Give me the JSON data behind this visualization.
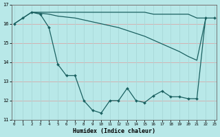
{
  "xlabel": "Humidex (Indice chaleur)",
  "background_color": "#b8e8e8",
  "grid_color_h": "#d8a8a8",
  "grid_color_v": "#a8d8d8",
  "line_color": "#1a6060",
  "x_values": [
    0,
    1,
    2,
    3,
    4,
    5,
    6,
    7,
    8,
    9,
    10,
    11,
    12,
    13,
    14,
    15,
    16,
    17,
    18,
    19,
    20,
    21,
    22,
    23
  ],
  "line1_y": [
    16.0,
    16.3,
    16.6,
    16.5,
    15.8,
    13.9,
    13.3,
    13.3,
    12.0,
    11.5,
    11.35,
    12.0,
    12.0,
    12.65,
    12.0,
    11.9,
    12.25,
    12.5,
    12.2,
    12.2,
    12.1,
    12.1,
    16.3,
    16.3
  ],
  "line2_y": [
    16.0,
    16.3,
    16.6,
    16.55,
    16.5,
    16.4,
    16.35,
    16.3,
    16.2,
    16.1,
    16.0,
    15.9,
    15.8,
    15.65,
    15.5,
    15.35,
    15.15,
    14.95,
    14.75,
    14.55,
    14.3,
    14.1,
    16.25,
    null
  ],
  "line3_y": [
    null,
    null,
    16.6,
    16.6,
    16.6,
    16.6,
    16.6,
    16.6,
    16.6,
    16.6,
    16.6,
    16.6,
    16.6,
    16.6,
    16.6,
    16.6,
    16.5,
    16.5,
    16.5,
    16.5,
    16.5,
    16.3,
    16.3,
    null
  ],
  "ylim": [
    11.0,
    17.0
  ],
  "xlim": [
    -0.3,
    23.3
  ],
  "yticks": [
    11,
    12,
    13,
    14,
    15,
    16,
    17
  ],
  "xticks": [
    0,
    1,
    2,
    3,
    4,
    5,
    6,
    7,
    8,
    9,
    10,
    11,
    12,
    13,
    14,
    15,
    16,
    17,
    18,
    19,
    20,
    21,
    22,
    23
  ]
}
